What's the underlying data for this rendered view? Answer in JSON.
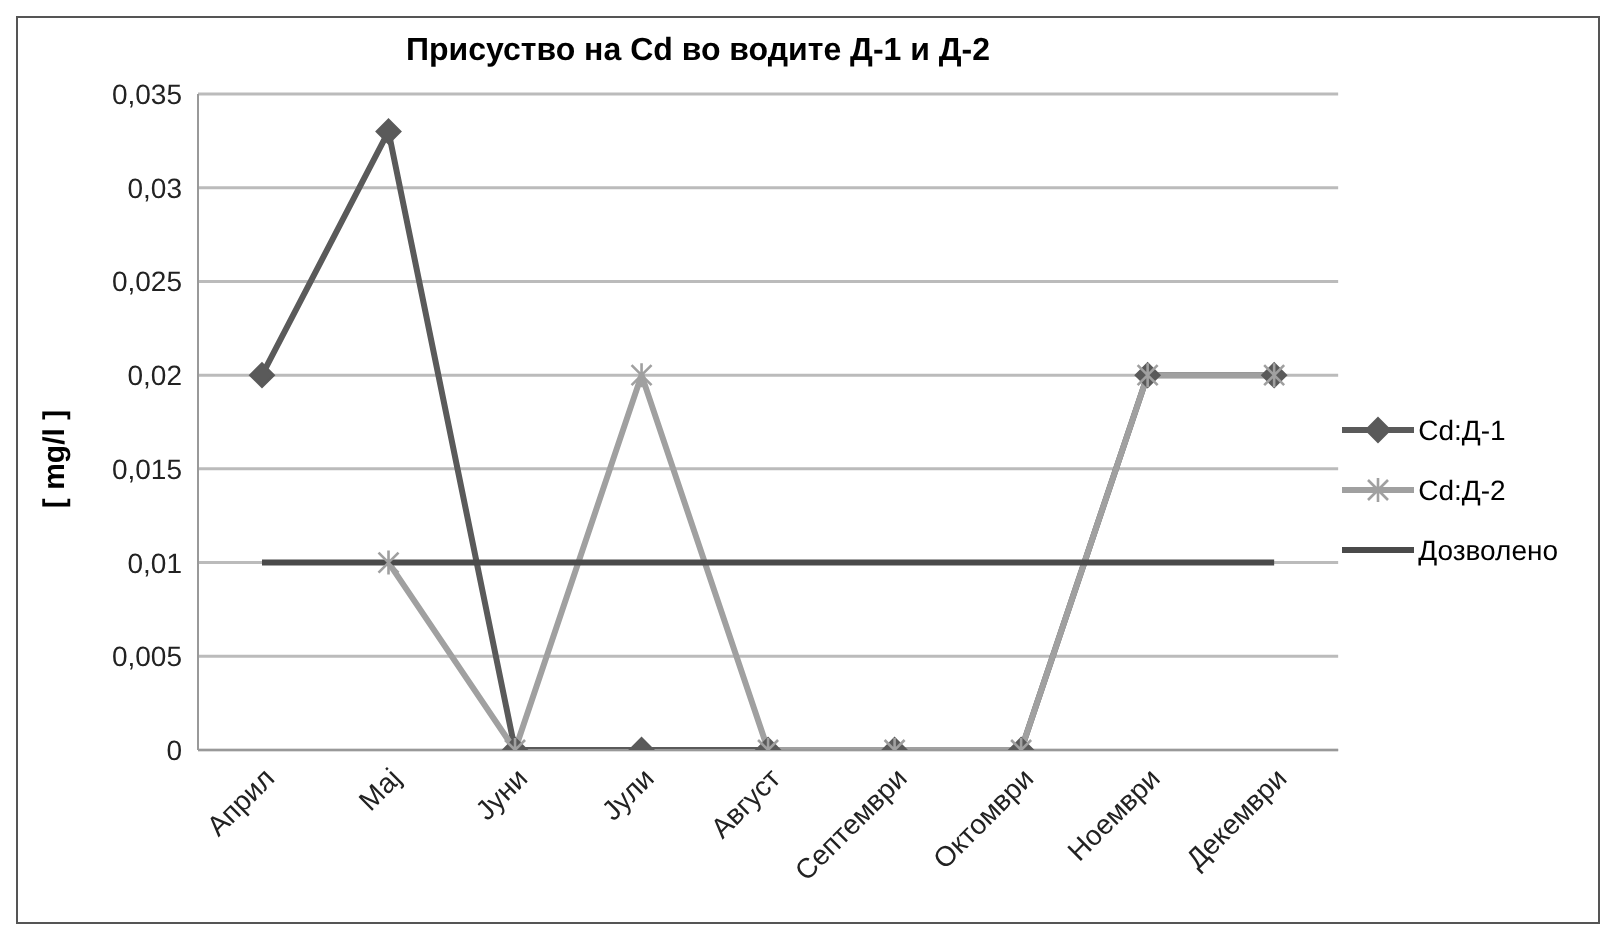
{
  "chart_data": {
    "type": "line",
    "title": "Присуство на Cd во водите Д-1 и Д-2",
    "ylabel": "[ mg/l ]",
    "categories": [
      "Април",
      "Мај",
      "Јуни",
      "Јули",
      "Август",
      "Септември",
      "Октомври",
      "Ноември",
      "Декември"
    ],
    "series": [
      {
        "name": "Cd:Д-1",
        "color": "#5a5a5a",
        "marker": "diamond",
        "values": [
          0.02,
          0.033,
          0,
          0,
          0,
          0,
          0,
          0.02,
          0.02
        ]
      },
      {
        "name": "Cd:Д-2",
        "color": "#a0a0a0",
        "marker": "cross",
        "values": [
          null,
          0.01,
          0,
          0.02,
          0,
          0,
          0,
          0.02,
          0.02
        ]
      },
      {
        "name": "Дозволено",
        "color": "#4a4a4a",
        "marker": "none",
        "values": [
          0.01,
          0.01,
          0.01,
          0.01,
          0.01,
          0.01,
          0.01,
          0.01,
          0.01
        ]
      }
    ],
    "ylim": [
      0,
      0.035
    ],
    "yticks": [
      0,
      {
        "value": 0.005,
        "label": "0,005"
      },
      {
        "value": 0.01,
        "label": "0,01"
      },
      {
        "value": 0.015,
        "label": "0,015"
      },
      {
        "value": 0.02,
        "label": "0,02"
      },
      {
        "value": 0.025,
        "label": "0,025"
      },
      {
        "value": 0.03,
        "label": "0,03"
      },
      {
        "value": 0.035,
        "label": "0,035"
      }
    ],
    "grid": "y",
    "legend": "right"
  }
}
